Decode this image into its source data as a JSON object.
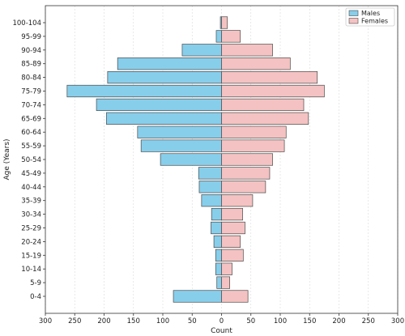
{
  "chart_data": {
    "type": "bar",
    "orientation": "horizontal",
    "layout": "population-pyramid",
    "xlabel": "Count",
    "ylabel": "Age (Years)",
    "xlim": [
      -300,
      300
    ],
    "xticks": [
      -300,
      -250,
      -200,
      -150,
      -100,
      -50,
      0,
      50,
      100,
      150,
      200,
      250,
      300
    ],
    "xtick_labels": [
      "300",
      "250",
      "200",
      "150",
      "100",
      "50",
      "0",
      "50",
      "100",
      "150",
      "200",
      "250",
      "300"
    ],
    "grid": "vertical",
    "legend_position": "top-right",
    "categories": [
      "0-4",
      "5-9",
      "10-14",
      "15-19",
      "20-24",
      "25-29",
      "30-34",
      "35-39",
      "40-44",
      "45-49",
      "50-54",
      "55-59",
      "60-64",
      "65-69",
      "70-74",
      "75-79",
      "80-84",
      "85-89",
      "90-94",
      "95-99",
      "100-104"
    ],
    "series": [
      {
        "name": "Males",
        "color": "#87ceeb",
        "side": "left",
        "values": [
          82,
          8,
          10,
          10,
          13,
          18,
          17,
          34,
          38,
          39,
          104,
          137,
          143,
          196,
          213,
          263,
          194,
          177,
          67,
          9,
          2
        ]
      },
      {
        "name": "Females",
        "color": "#f4c2c2",
        "side": "right",
        "values": [
          45,
          14,
          18,
          37,
          32,
          40,
          36,
          53,
          75,
          82,
          87,
          107,
          110,
          148,
          140,
          175,
          163,
          117,
          87,
          32,
          10
        ]
      }
    ]
  }
}
